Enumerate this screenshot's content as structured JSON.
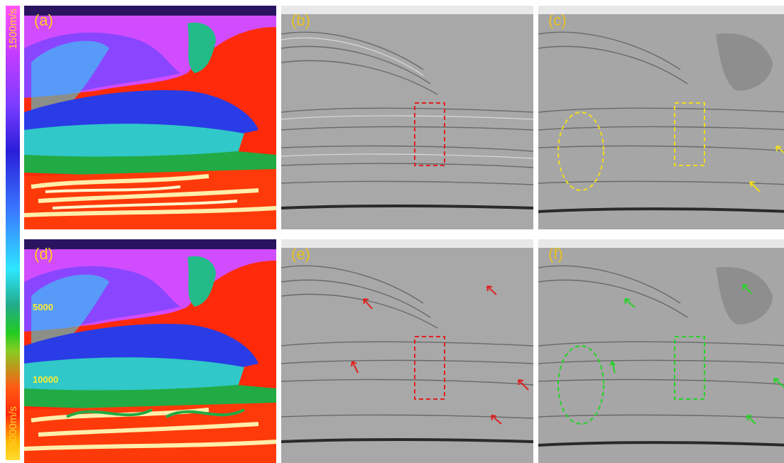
{
  "colorbar": {
    "top_label": "1500m/s",
    "bottom_label": "5000m/s"
  },
  "panels": [
    {
      "id": "a",
      "label": "(a)",
      "type": "velocity"
    },
    {
      "id": "b",
      "label": "(b)",
      "type": "seismic",
      "highlight_color": "#e02020"
    },
    {
      "id": "c",
      "label": "(c)",
      "type": "seismic",
      "highlight_color": "#f0dc1e"
    },
    {
      "id": "d",
      "label": "(d)",
      "type": "velocity"
    },
    {
      "id": "e",
      "label": "(e)",
      "type": "seismic",
      "highlight_color": "#e02020"
    },
    {
      "id": "f",
      "label": "(f)",
      "type": "seismic",
      "highlight_color": "#28d228"
    }
  ],
  "contour_labels": {
    "first": "5000",
    "second": "10000"
  },
  "colors": {
    "label": "#ffcc22",
    "red_markup": "#e02020",
    "yellow_markup": "#f0dc1e",
    "green_markup": "#28d228"
  }
}
